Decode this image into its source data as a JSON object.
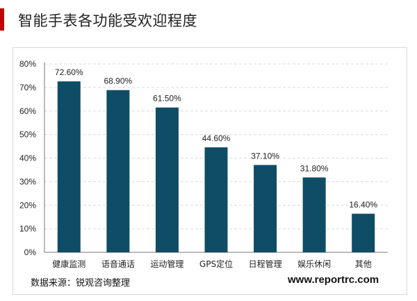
{
  "header": {
    "title": "智能手表各功能受欢迎程度"
  },
  "footer": {
    "source": "数据来源：锐观咨询整理",
    "website": "www.reportrc.com"
  },
  "chart_data": {
    "type": "bar",
    "title": "",
    "xlabel": "",
    "ylabel": "",
    "categories": [
      "健康监测",
      "语音通话",
      "运动管理",
      "GPS定位",
      "日程管理",
      "娱乐休闲",
      "其他"
    ],
    "values": [
      72.6,
      68.9,
      61.5,
      44.6,
      37.1,
      31.8,
      16.4
    ],
    "value_labels": [
      "72.60%",
      "68.90%",
      "61.50%",
      "44.60%",
      "37.10%",
      "31.80%",
      "16.40%"
    ],
    "y_ticks": [
      "0%",
      "10%",
      "20%",
      "30%",
      "40%",
      "50%",
      "60%",
      "70%",
      "80%"
    ],
    "ylim": [
      0,
      80
    ],
    "grid": true,
    "bar_color": "#0f4c66"
  }
}
